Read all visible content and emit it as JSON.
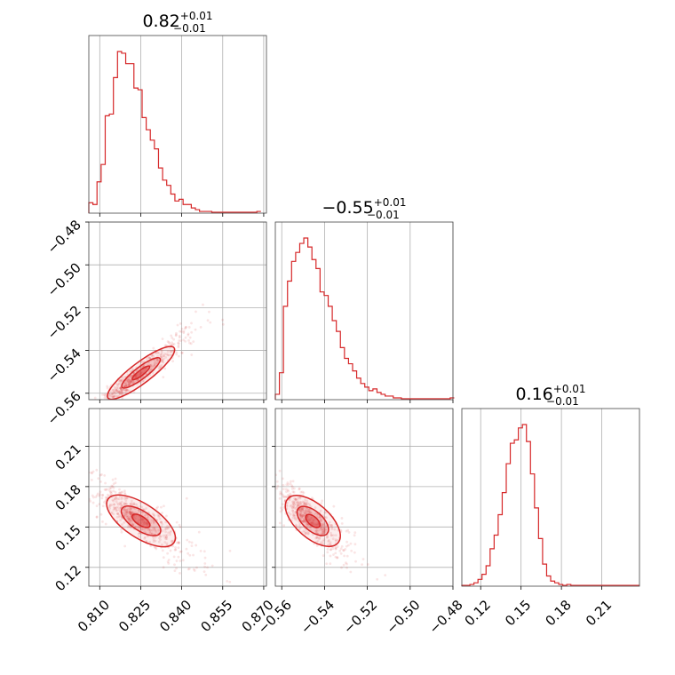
{
  "chart_data": {
    "type": "corner",
    "color": "#d62728",
    "fill_color": "#d62728",
    "grid": true,
    "parameters": [
      {
        "title": {
          "median": "0.82",
          "plus": "+0.01",
          "minus": "−0.01"
        },
        "range": [
          0.806,
          0.871
        ],
        "ticks": [
          0.81,
          0.825,
          0.84,
          0.855,
          0.87
        ],
        "tick_labels": [
          "0.810",
          "0.825",
          "0.840",
          "0.855",
          "0.870"
        ],
        "hist": {
          "bin_start": 0.806,
          "bin_width": 0.0015,
          "counts": [
            6,
            5,
            18,
            28,
            56,
            57,
            78,
            93,
            92,
            86,
            86,
            72,
            71,
            55,
            48,
            42,
            37,
            26,
            19,
            16,
            11,
            7,
            8,
            5,
            5,
            3,
            2,
            1,
            1,
            1,
            0.5,
            0.5,
            0.5,
            0.5,
            0.5,
            0.5,
            0.5,
            0.5,
            0.5,
            0.5,
            0.5,
            1
          ]
        }
      },
      {
        "title": {
          "median": "−0.55",
          "plus": "+0.01",
          "minus": "−0.01"
        },
        "range": [
          -0.563,
          -0.48
        ],
        "ticks": [
          -0.56,
          -0.54,
          -0.52,
          -0.5,
          -0.48
        ],
        "tick_labels": [
          "−0.56",
          "−0.54",
          "−0.52",
          "−0.50",
          "−0.48"
        ],
        "hist": {
          "bin_start": -0.563,
          "bin_width": 0.0019,
          "counts": [
            3,
            15,
            52,
            66,
            77,
            82,
            87,
            90,
            85,
            78,
            73,
            60,
            58,
            52,
            44,
            38,
            29,
            23,
            20,
            16,
            12,
            9,
            7,
            5,
            6,
            4,
            3,
            2,
            2,
            1,
            1,
            0.5,
            0.5,
            0.5,
            0.5,
            0.5,
            0.5,
            0.5,
            0.5,
            0.5,
            0.5,
            0.5,
            0.5,
            1
          ]
        }
      },
      {
        "title": {
          "median": "0.16",
          "plus": "+0.01",
          "minus": "−0.01"
        },
        "range": [
          0.106,
          0.238
        ],
        "ticks": [
          0.12,
          0.15,
          0.18,
          0.21
        ],
        "tick_labels": [
          "0.12",
          "0.15",
          "0.18",
          "0.21"
        ],
        "hist": {
          "bin_start": 0.106,
          "bin_width": 0.003,
          "counts": [
            0.5,
            0.5,
            1,
            2,
            4,
            7,
            12,
            22,
            30,
            42,
            55,
            72,
            84,
            86,
            93,
            95,
            85,
            66,
            46,
            28,
            13,
            6,
            3,
            2,
            1,
            0.5,
            1,
            0.5,
            0.5,
            0.5,
            0.5,
            0.5,
            0.5,
            0.5,
            0.5,
            0.5,
            0.5,
            0.5,
            0.5,
            0.5,
            0.5,
            0.5,
            0.5,
            0.5
          ]
        }
      }
    ],
    "pairs": [
      {
        "x_param": 0,
        "y_param": 1,
        "x_slope": 0.0,
        "x_mean": 0.8225,
        "x_sd": 0.0065,
        "y_at_mean": -0.553,
        "y_slope": 0.97,
        "y_noise": 0.0023,
        "contour_levels": [
          0.39,
          0.86,
          1.5
        ]
      },
      {
        "x_param": 0,
        "y_param": 2,
        "x_mean": 0.8225,
        "x_sd": 0.0065,
        "y_at_mean": 0.158,
        "y_slope": -1.33,
        "y_noise": 0.006,
        "contour_levels": [
          0.39,
          0.86,
          1.5
        ]
      },
      {
        "x_param": 1,
        "y_param": 2,
        "x_mean": -0.548,
        "x_sd": 0.0063,
        "y_at_mean": 0.158,
        "y_slope": -1.4,
        "y_noise": 0.006,
        "contour_levels": [
          0.39,
          0.86,
          1.5
        ]
      }
    ]
  }
}
